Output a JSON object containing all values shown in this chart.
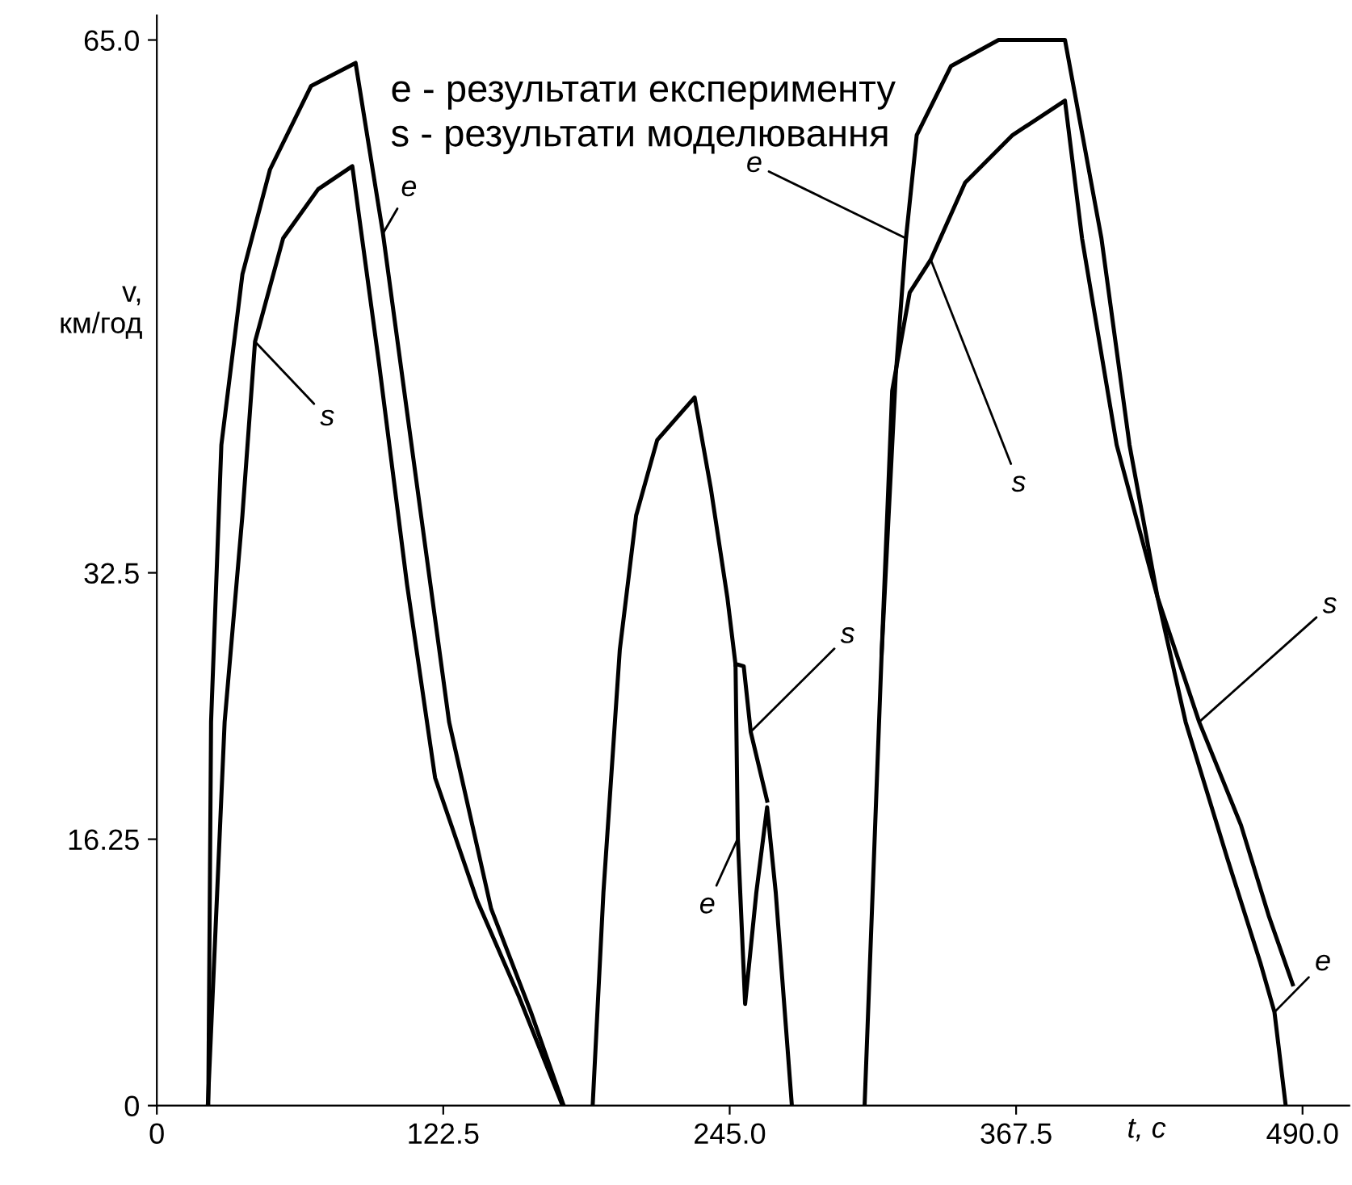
{
  "chart_data": {
    "type": "line",
    "xlabel": "t, с",
    "ylabel": "v,\nкм/год",
    "xlim": [
      0,
      510
    ],
    "ylim": [
      0,
      66.5
    ],
    "xticks": [
      0,
      {
        "value": 122.5,
        "label": "122.5"
      },
      {
        "value": 245,
        "label": "245.0"
      },
      {
        "value": 367.5,
        "label": "367.5"
      },
      {
        "value": 490,
        "label": "490.0"
      }
    ],
    "yticks": [
      0,
      16.25,
      32.5,
      {
        "value": 65,
        "label": "65.0"
      }
    ],
    "grid": false,
    "legend": false,
    "marker": "none",
    "line_style": "solid",
    "series": [
      {
        "color": "#000000",
        "x": [
          22,
          23.2,
          27.6,
          36.6,
          48.4,
          66,
          85,
          96.7,
          113,
          125,
          143,
          160,
          174,
          null,
          186.4,
          191,
          198,
          205,
          214,
          230,
          237,
          244,
          247.5,
          248.5,
          251.6,
          256.4,
          261,
          264.7,
          271.6,
          null,
          302.7,
          310,
          316,
          320.4,
          325,
          339.6,
          360,
          388.4,
          404,
          416,
          428,
          440,
          458,
          472,
          478,
          482.8
        ],
        "values": [
          0,
          23.4,
          40.3,
          50.7,
          57.1,
          62.2,
          63.6,
          53.2,
          36,
          23.4,
          12,
          5.7,
          0,
          null,
          0,
          13,
          27.8,
          36,
          40.6,
          43.2,
          37.6,
          31,
          26.9,
          16.3,
          6.2,
          13,
          18.2,
          13,
          0,
          null,
          0,
          27.6,
          44.5,
          52.9,
          59.2,
          63.4,
          65,
          65,
          52.9,
          40.3,
          31,
          23.4,
          15,
          8.7,
          5.7,
          0
        ]
      },
      {
        "color": "#000000",
        "x": [
          21.8,
          29,
          36.6,
          42,
          54,
          69,
          83.6,
          95,
          107,
          119,
          137,
          155,
          173.5,
          null,
          247.5,
          248.6,
          251,
          254,
          261,
          null,
          310,
          314.5,
          322,
          331,
          345.7,
          366,
          388.4,
          395.7,
          410.5,
          428,
          445.8,
          463.7,
          475.5,
          485.8
        ],
        "values": [
          0,
          23.4,
          36,
          46.6,
          52.9,
          55.9,
          57.3,
          45.3,
          31.8,
          20,
          12.5,
          6.6,
          0,
          null,
          26.9,
          26.9,
          26.8,
          22.8,
          18.6,
          null,
          27.6,
          43.6,
          49.6,
          51.6,
          56.3,
          59.2,
          61.3,
          52.9,
          40.3,
          31,
          23.4,
          17.1,
          11.6,
          7.4
        ]
      }
    ],
    "annotations": [
      "e - результати експерименту",
      "s - результати моделювання",
      {
        "text": "e",
        "x": 96.7,
        "y": 53.2
      },
      {
        "text": "s",
        "x": 42,
        "y": 46.6
      },
      {
        "text": "s",
        "x": 254,
        "y": 22.8
      },
      {
        "text": "e",
        "x": 248.5,
        "y": 16.3
      },
      {
        "text": "e",
        "x": 320.4,
        "y": 52.9
      },
      {
        "text": "s",
        "x": 331,
        "y": 51.6
      },
      {
        "text": "s",
        "x": 445.8,
        "y": 23.4
      },
      {
        "text": "e",
        "x": 478,
        "y": 5.7
      }
    ]
  }
}
